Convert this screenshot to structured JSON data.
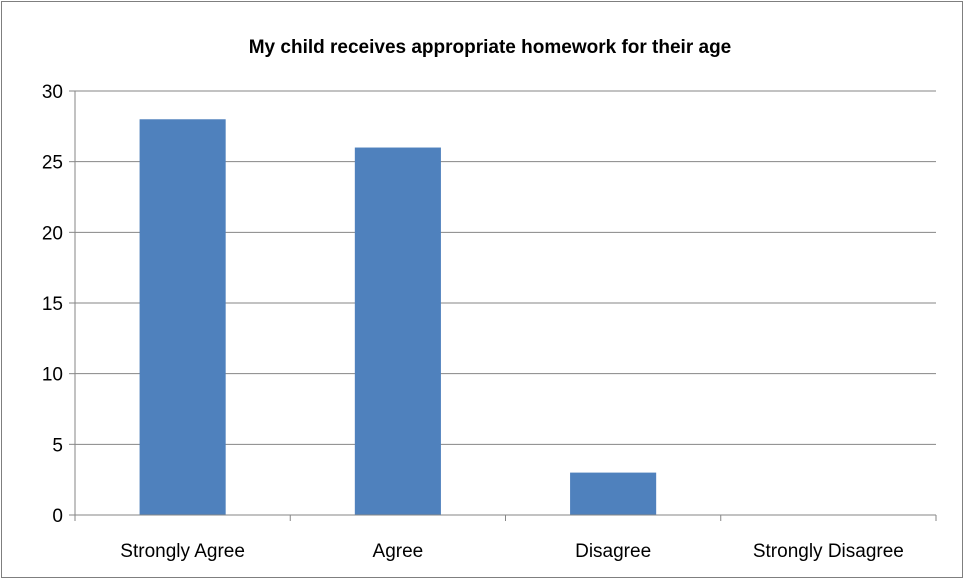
{
  "chart_data": {
    "type": "bar",
    "title": "My child receives appropriate homework for their age",
    "categories": [
      "Strongly Agree",
      "Agree",
      "Disagree",
      "Strongly Disagree"
    ],
    "values": [
      28,
      26,
      3,
      0
    ],
    "ylim": [
      0,
      30
    ],
    "yticks": [
      0,
      5,
      10,
      15,
      20,
      25,
      30
    ],
    "grid": true,
    "bar_color": "#4f81bd",
    "grid_color": "#868686"
  }
}
